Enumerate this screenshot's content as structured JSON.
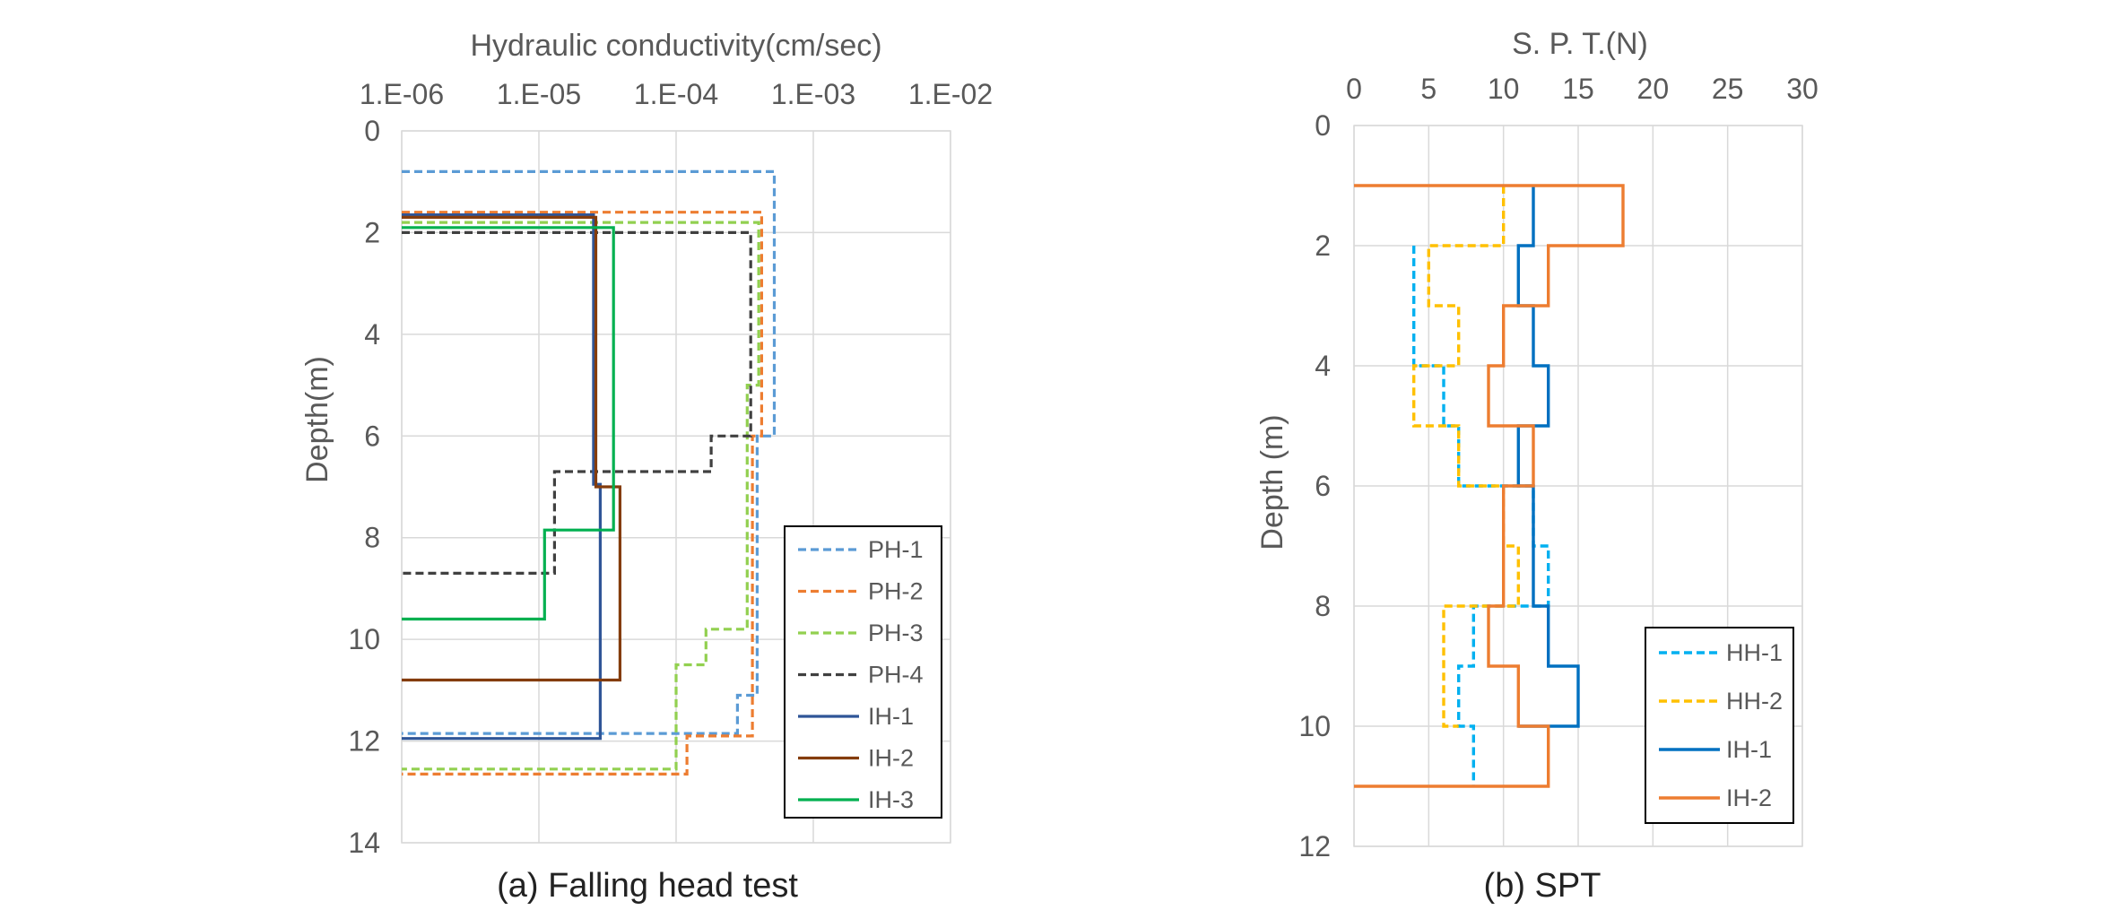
{
  "chart_data": [
    {
      "type": "line",
      "title": "Hydraulic conductivity(cm/sec)",
      "xlabel": "Hydraulic conductivity(cm/sec)",
      "ylabel": "Depth(m)",
      "caption": "(a) Falling head test",
      "xscale": "log",
      "xlim": [
        1e-06,
        0.01
      ],
      "ylim": [
        0,
        14
      ],
      "y_inverted": true,
      "x_axis_position": "top",
      "x_tick_values": [
        1e-06,
        1e-05,
        0.0001,
        0.001,
        0.01
      ],
      "x_tick_labels": [
        "1.E-06",
        "1.E-05",
        "1.E-04",
        "1.E-03",
        "1.E-02"
      ],
      "y_tick_values": [
        0,
        2,
        4,
        6,
        8,
        10,
        12,
        14
      ],
      "y_tick_labels": [
        "0",
        "2",
        "4",
        "6",
        "8",
        "10",
        "12",
        "14"
      ],
      "grid": true,
      "legend_position": "bottom-right",
      "series": [
        {
          "name": "PH-1",
          "color": "#5B9BD5",
          "dash": "dashed",
          "points": [
            [
              1e-06,
              0.8
            ],
            [
              0.00052,
              0.8
            ],
            [
              0.00052,
              6.0
            ],
            [
              0.00039,
              6.0
            ],
            [
              0.00039,
              11.1
            ],
            [
              0.00028,
              11.1
            ],
            [
              0.00028,
              11.85
            ],
            [
              1e-06,
              11.85
            ]
          ]
        },
        {
          "name": "PH-2",
          "color": "#ED7D31",
          "dash": "dashed",
          "points": [
            [
              1e-06,
              1.6
            ],
            [
              0.00042,
              1.6
            ],
            [
              0.00042,
              6.0
            ],
            [
              0.00036,
              6.0
            ],
            [
              0.00036,
              11.9
            ],
            [
              0.00012,
              11.9
            ],
            [
              0.00012,
              12.65
            ],
            [
              1e-06,
              12.65
            ]
          ]
        },
        {
          "name": "PH-3",
          "color": "#92D050",
          "dash": "dashed",
          "points": [
            [
              1e-06,
              1.8
            ],
            [
              0.0004,
              1.8
            ],
            [
              0.0004,
              5.0
            ],
            [
              0.00033,
              5.0
            ],
            [
              0.00033,
              9.8
            ],
            [
              0.000165,
              9.8
            ],
            [
              0.000165,
              10.5
            ],
            [
              0.0001,
              10.5
            ],
            [
              0.0001,
              12.55
            ],
            [
              1e-06,
              12.55
            ]
          ]
        },
        {
          "name": "PH-4",
          "color": "#404040",
          "dash": "dashed",
          "points": [
            [
              1e-06,
              2.0
            ],
            [
              0.00035,
              2.0
            ],
            [
              0.00035,
              6.0
            ],
            [
              0.00018,
              6.0
            ],
            [
              0.00018,
              6.7
            ],
            [
              1.3e-05,
              6.7
            ],
            [
              1.3e-05,
              8.7
            ],
            [
              1e-06,
              8.7
            ]
          ]
        },
        {
          "name": "IH-1",
          "color": "#2F5597",
          "dash": "solid",
          "points": [
            [
              1e-06,
              1.65
            ],
            [
              2.5e-05,
              1.65
            ],
            [
              2.5e-05,
              6.95
            ],
            [
              2.8e-05,
              6.95
            ],
            [
              2.8e-05,
              11.95
            ],
            [
              1e-06,
              11.95
            ]
          ]
        },
        {
          "name": "IH-2",
          "color": "#843C0C",
          "dash": "solid",
          "points": [
            [
              1e-06,
              1.7
            ],
            [
              2.6e-05,
              1.7
            ],
            [
              2.6e-05,
              7.0
            ],
            [
              3.9e-05,
              7.0
            ],
            [
              3.9e-05,
              10.8
            ],
            [
              1e-06,
              10.8
            ]
          ]
        },
        {
          "name": "IH-3",
          "color": "#00B050",
          "dash": "solid",
          "points": [
            [
              1e-06,
              1.9
            ],
            [
              3.5e-05,
              1.9
            ],
            [
              3.5e-05,
              7.85
            ],
            [
              1.1e-05,
              7.85
            ],
            [
              1.1e-05,
              9.6
            ],
            [
              1e-06,
              9.6
            ]
          ]
        }
      ]
    },
    {
      "type": "line",
      "title": "S. P. T.(N)",
      "xlabel": "S. P. T.(N)",
      "ylabel": "Depth (m)",
      "caption": "(b) SPT",
      "xlim": [
        0,
        30
      ],
      "ylim": [
        0,
        12
      ],
      "y_inverted": true,
      "x_axis_position": "top",
      "x_tick_values": [
        0,
        5,
        10,
        15,
        20,
        25,
        30
      ],
      "x_tick_labels": [
        "0",
        "5",
        "10",
        "15",
        "20",
        "25",
        "30"
      ],
      "y_tick_values": [
        0,
        2,
        4,
        6,
        8,
        10,
        12
      ],
      "y_tick_labels": [
        "0",
        "2",
        "4",
        "6",
        "8",
        "10",
        "12"
      ],
      "grid": true,
      "legend_position": "bottom-right",
      "series": [
        {
          "name": "HH-1",
          "color": "#00B0F0",
          "dash": "dashed",
          "points": [
            [
              4,
              2
            ],
            [
              4,
              4
            ],
            [
              6,
              4
            ],
            [
              6,
              5
            ],
            [
              7,
              5
            ],
            [
              7,
              6
            ],
            [
              12,
              6
            ],
            [
              12,
              7
            ],
            [
              13,
              7
            ],
            [
              13,
              8
            ],
            [
              8,
              8
            ],
            [
              8,
              9
            ],
            [
              7,
              9
            ],
            [
              7,
              10
            ],
            [
              8,
              10
            ],
            [
              8,
              11
            ]
          ]
        },
        {
          "name": "HH-2",
          "color": "#FFC000",
          "dash": "dashed",
          "points": [
            [
              10,
              1
            ],
            [
              10,
              2
            ],
            [
              5,
              2
            ],
            [
              5,
              3
            ],
            [
              7,
              3
            ],
            [
              7,
              4
            ],
            [
              4,
              4
            ],
            [
              4,
              5
            ],
            [
              7,
              5
            ],
            [
              7,
              6
            ],
            [
              10,
              6
            ],
            [
              10,
              7
            ],
            [
              11,
              7
            ],
            [
              11,
              8
            ],
            [
              6,
              8
            ],
            [
              6,
              10
            ],
            [
              7,
              10
            ]
          ]
        },
        {
          "name": "IH-1",
          "color": "#0070C0",
          "dash": "solid",
          "points": [
            [
              12,
              1
            ],
            [
              12,
              2
            ],
            [
              11,
              2
            ],
            [
              11,
              3
            ],
            [
              12,
              3
            ],
            [
              12,
              4
            ],
            [
              13,
              4
            ],
            [
              13,
              5
            ],
            [
              11,
              5
            ],
            [
              11,
              6
            ],
            [
              12,
              6
            ],
            [
              12,
              8
            ],
            [
              13,
              8
            ],
            [
              13,
              9
            ],
            [
              15,
              9
            ],
            [
              15,
              10
            ],
            [
              11,
              10
            ]
          ]
        },
        {
          "name": "IH-2",
          "color": "#ED7D31",
          "dash": "solid",
          "points": [
            [
              0,
              1
            ],
            [
              18,
              1
            ],
            [
              18,
              2
            ],
            [
              13,
              2
            ],
            [
              13,
              3
            ],
            [
              10,
              3
            ],
            [
              10,
              4
            ],
            [
              9,
              4
            ],
            [
              9,
              5
            ],
            [
              12,
              5
            ],
            [
              12,
              6
            ],
            [
              10,
              6
            ],
            [
              10,
              8
            ],
            [
              9,
              8
            ],
            [
              9,
              9
            ],
            [
              11,
              9
            ],
            [
              11,
              10
            ],
            [
              13,
              10
            ],
            [
              13,
              11
            ],
            [
              0,
              11
            ]
          ]
        }
      ]
    }
  ]
}
